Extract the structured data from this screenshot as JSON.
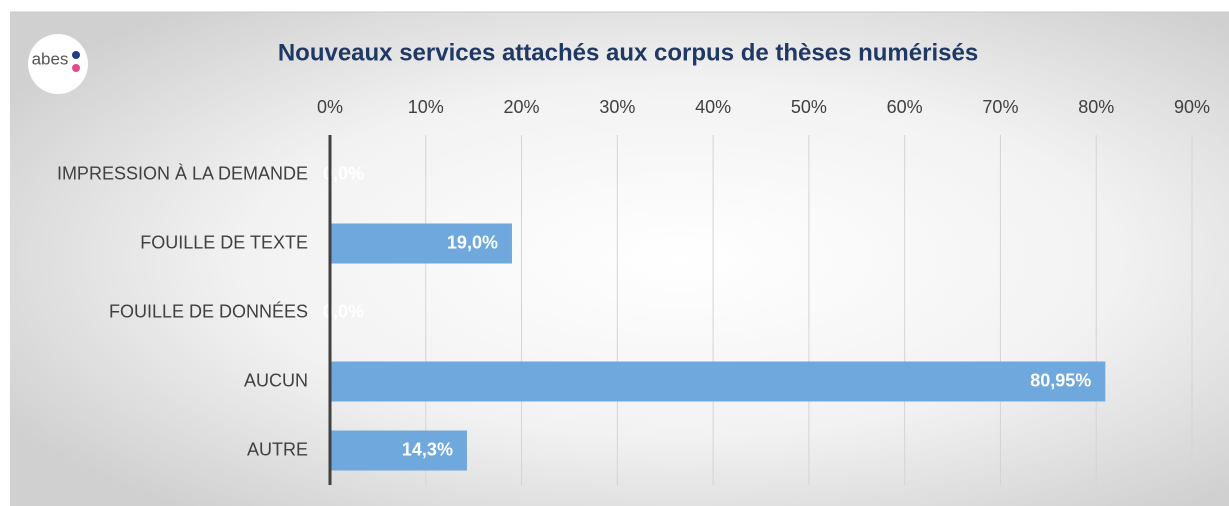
{
  "logo": "abes",
  "chart_data": {
    "type": "barh",
    "title": "Nouveaux services attachés aux corpus de thèses numérisés",
    "categories": [
      "IMPRESSION À LA DEMANDE",
      "FOUILLE DE TEXTE",
      "FOUILLE DE DONNÉES",
      "AUCUN",
      "AUTRE"
    ],
    "values": [
      0,
      19.0,
      0,
      80.95,
      14.3
    ],
    "value_labels": [
      "0,0%",
      "19,0%",
      "0,0%",
      "80,95%",
      "14,3%"
    ],
    "color": "#6fa8dc",
    "xlim": [
      0,
      90
    ],
    "xticks": [
      {
        "value": 0,
        "label": "0%"
      },
      {
        "value": 10,
        "label": "10%"
      },
      {
        "value": 20,
        "label": "20%"
      },
      {
        "value": 30,
        "label": "30%"
      },
      {
        "value": 40,
        "label": "40%"
      },
      {
        "value": 50,
        "label": "50%"
      },
      {
        "value": 60,
        "label": "60%"
      },
      {
        "value": 70,
        "label": "70%"
      },
      {
        "value": 80,
        "label": "80%"
      },
      {
        "value": 90,
        "label": "90%"
      }
    ],
    "grid": true
  }
}
